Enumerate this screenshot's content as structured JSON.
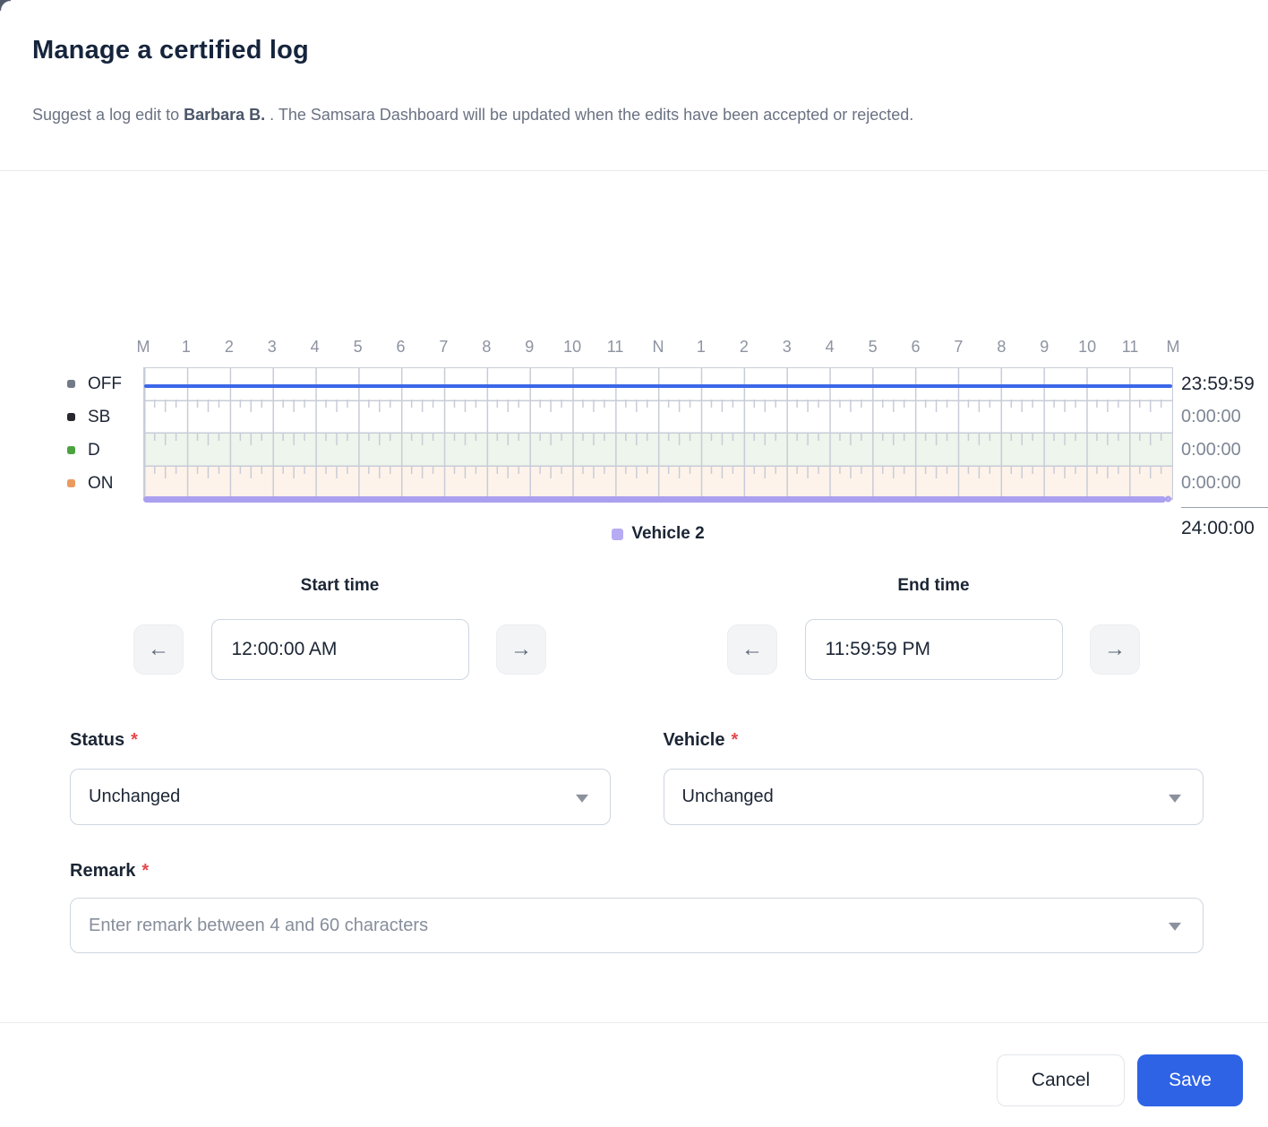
{
  "header": {
    "title": "Manage a certified log",
    "subtitle_prefix": "Suggest a log edit to ",
    "subtitle_name": "Barbara B.",
    "subtitle_suffix": " . The Samsara Dashboard will be updated when the edits have been accepted or rejected."
  },
  "chart": {
    "type": "hos-log-graph",
    "hours": [
      "M",
      "1",
      "2",
      "3",
      "4",
      "5",
      "6",
      "7",
      "8",
      "9",
      "10",
      "11",
      "N",
      "1",
      "2",
      "3",
      "4",
      "5",
      "6",
      "7",
      "8",
      "9",
      "10",
      "11",
      "M"
    ],
    "rows": [
      {
        "label": "OFF",
        "swatch_color": "#717a87",
        "band_color": "#ffffff",
        "total": "23:59:59",
        "total_emphasis": true
      },
      {
        "label": "SB",
        "swatch_color": "#26282d",
        "band_color": "#ffffff",
        "total": "0:00:00",
        "total_emphasis": false
      },
      {
        "label": "D",
        "swatch_color": "#4ba33e",
        "band_color": "#edf5ec",
        "total": "0:00:00",
        "total_emphasis": false
      },
      {
        "label": "ON",
        "swatch_color": "#eb9a60",
        "band_color": "#fdf3ea",
        "total": "0:00:00",
        "total_emphasis": false
      }
    ],
    "grand_total": "24:00:00",
    "duty_line_color": "#3c67e8",
    "duty_line_row": "OFF",
    "vehicle_line_color": "#aba0ef",
    "legend": {
      "label": "Vehicle 2",
      "swatch_color": "#b7abf4"
    }
  },
  "start_time": {
    "label": "Start time",
    "value": "12:00:00 AM"
  },
  "end_time": {
    "label": "End time",
    "value": "11:59:59 PM"
  },
  "status_field": {
    "label": "Status",
    "required_mark": "*",
    "value": "Unchanged"
  },
  "vehicle_field": {
    "label": "Vehicle",
    "required_mark": "*",
    "value": "Unchanged"
  },
  "remark_field": {
    "label": "Remark",
    "required_mark": "*",
    "placeholder": "Enter remark between 4 and 60 characters"
  },
  "footer": {
    "cancel_label": "Cancel",
    "save_label": "Save"
  },
  "colors": {
    "accent": "#2e63e6",
    "required": "#e5484d"
  },
  "icons": {
    "left_arrow": "←",
    "right_arrow": "→"
  }
}
